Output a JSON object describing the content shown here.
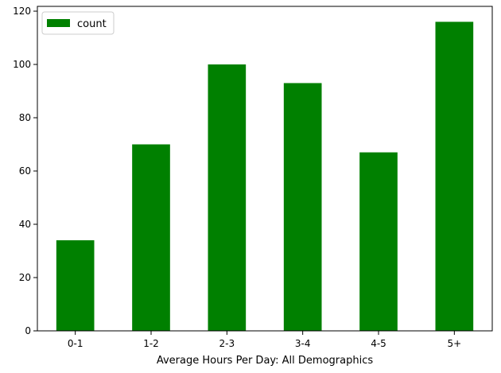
{
  "chart_data": {
    "type": "bar",
    "categories": [
      "0-1",
      "1-2",
      "2-3",
      "3-4",
      "4-5",
      "5+"
    ],
    "series": [
      {
        "name": "count",
        "values": [
          34,
          70,
          100,
          93,
          67,
          116
        ],
        "color": "#008000"
      }
    ],
    "xlabel": "Average Hours Per Day: All Demographics",
    "ylabel": "",
    "ylim": [
      0,
      121.8
    ],
    "yticks": [
      0,
      20,
      40,
      60,
      80,
      100,
      120
    ],
    "grid": false,
    "legend": {
      "placement": "upper-left",
      "entries": [
        "count"
      ]
    }
  }
}
